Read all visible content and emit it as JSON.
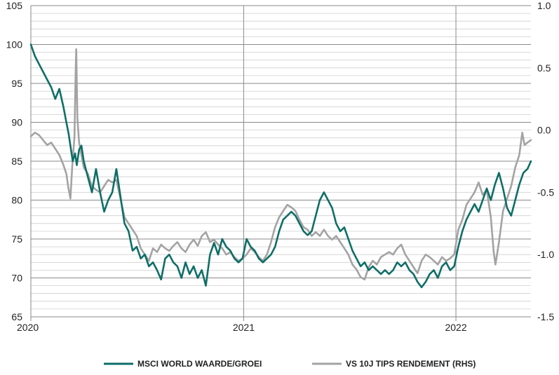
{
  "chart_data": {
    "type": "line",
    "x_axis": {
      "kind": "date",
      "range": [
        "2020-01-01",
        "2022-05-10"
      ],
      "tick_labels": [
        "2020",
        "2021",
        "2022"
      ],
      "tick_dates": [
        "2020-01-01",
        "2021-01-01",
        "2022-01-01"
      ],
      "vertical_gridlines": true
    },
    "y_left": {
      "range": [
        65,
        105
      ],
      "tick_labels": [
        "105",
        "100",
        "95",
        "90",
        "85",
        "80",
        "75",
        "70",
        "65"
      ],
      "ticks": [
        105,
        100,
        95,
        90,
        85,
        80,
        75,
        70,
        65
      ],
      "minor_grid_step": 1
    },
    "y_right": {
      "range": [
        -1.5,
        1.0
      ],
      "tick_labels": [
        "1.0",
        "0.5",
        "0.0",
        "-0.5",
        "-1.0",
        "-1.5"
      ],
      "ticks": [
        1.0,
        0.5,
        0.0,
        -0.5,
        -1.0,
        -1.5
      ]
    },
    "grid": true,
    "legend": {
      "placement": "bottom-center"
    },
    "series": [
      {
        "name": "MSCI WORLD WAARDE/GROEI",
        "axis": "left",
        "color": "#0e6e67",
        "points": [
          [
            "2020-01-01",
            100.0
          ],
          [
            "2020-01-08",
            98.5
          ],
          [
            "2020-01-15",
            97.5
          ],
          [
            "2020-01-22",
            96.5
          ],
          [
            "2020-01-29",
            95.5
          ],
          [
            "2020-02-05",
            94.5
          ],
          [
            "2020-02-12",
            93.0
          ],
          [
            "2020-02-19",
            94.3
          ],
          [
            "2020-02-26",
            92.0
          ],
          [
            "2020-03-02",
            90.0
          ],
          [
            "2020-03-06",
            88.5
          ],
          [
            "2020-03-10",
            86.5
          ],
          [
            "2020-03-13",
            85.0
          ],
          [
            "2020-03-17",
            86.0
          ],
          [
            "2020-03-20",
            84.5
          ],
          [
            "2020-03-24",
            86.5
          ],
          [
            "2020-03-28",
            87.0
          ],
          [
            "2020-04-01",
            85.0
          ],
          [
            "2020-04-08",
            83.0
          ],
          [
            "2020-04-15",
            81.0
          ],
          [
            "2020-04-22",
            84.0
          ],
          [
            "2020-04-29",
            81.0
          ],
          [
            "2020-05-06",
            78.5
          ],
          [
            "2020-05-13",
            80.0
          ],
          [
            "2020-05-20",
            81.0
          ],
          [
            "2020-05-27",
            84.0
          ],
          [
            "2020-06-03",
            80.5
          ],
          [
            "2020-06-10",
            77.0
          ],
          [
            "2020-06-17",
            76.0
          ],
          [
            "2020-06-24",
            73.5
          ],
          [
            "2020-07-01",
            74.0
          ],
          [
            "2020-07-08",
            72.5
          ],
          [
            "2020-07-15",
            73.0
          ],
          [
            "2020-07-22",
            71.5
          ],
          [
            "2020-07-29",
            72.0
          ],
          [
            "2020-08-05",
            71.0
          ],
          [
            "2020-08-12",
            69.8
          ],
          [
            "2020-08-19",
            72.5
          ],
          [
            "2020-08-26",
            73.0
          ],
          [
            "2020-09-02",
            72.0
          ],
          [
            "2020-09-09",
            71.5
          ],
          [
            "2020-09-16",
            70.0
          ],
          [
            "2020-09-23",
            72.0
          ],
          [
            "2020-09-30",
            70.5
          ],
          [
            "2020-10-07",
            71.5
          ],
          [
            "2020-10-14",
            70.0
          ],
          [
            "2020-10-21",
            71.0
          ],
          [
            "2020-10-28",
            69.0
          ],
          [
            "2020-11-04",
            73.0
          ],
          [
            "2020-11-11",
            74.5
          ],
          [
            "2020-11-18",
            73.0
          ],
          [
            "2020-11-25",
            75.0
          ],
          [
            "2020-12-02",
            74.0
          ],
          [
            "2020-12-09",
            73.5
          ],
          [
            "2020-12-16",
            72.5
          ],
          [
            "2020-12-23",
            72.0
          ],
          [
            "2020-12-30",
            72.5
          ],
          [
            "2021-01-06",
            75.0
          ],
          [
            "2021-01-13",
            74.0
          ],
          [
            "2021-01-20",
            73.5
          ],
          [
            "2021-01-27",
            72.5
          ],
          [
            "2021-02-03",
            72.0
          ],
          [
            "2021-02-10",
            72.5
          ],
          [
            "2021-02-17",
            73.0
          ],
          [
            "2021-02-24",
            74.0
          ],
          [
            "2021-03-03",
            76.0
          ],
          [
            "2021-03-10",
            77.5
          ],
          [
            "2021-03-17",
            78.0
          ],
          [
            "2021-03-24",
            78.5
          ],
          [
            "2021-03-31",
            78.0
          ],
          [
            "2021-04-07",
            77.0
          ],
          [
            "2021-04-14",
            76.0
          ],
          [
            "2021-04-21",
            75.5
          ],
          [
            "2021-04-28",
            76.0
          ],
          [
            "2021-05-05",
            78.0
          ],
          [
            "2021-05-12",
            80.0
          ],
          [
            "2021-05-19",
            81.0
          ],
          [
            "2021-05-26",
            80.0
          ],
          [
            "2021-06-02",
            79.0
          ],
          [
            "2021-06-09",
            77.0
          ],
          [
            "2021-06-16",
            76.0
          ],
          [
            "2021-06-23",
            76.5
          ],
          [
            "2021-06-30",
            75.0
          ],
          [
            "2021-07-07",
            73.5
          ],
          [
            "2021-07-14",
            72.5
          ],
          [
            "2021-07-21",
            71.5
          ],
          [
            "2021-07-28",
            72.0
          ],
          [
            "2021-08-04",
            71.0
          ],
          [
            "2021-08-11",
            71.5
          ],
          [
            "2021-08-18",
            71.0
          ],
          [
            "2021-08-25",
            70.5
          ],
          [
            "2021-09-01",
            71.0
          ],
          [
            "2021-09-08",
            70.5
          ],
          [
            "2021-09-15",
            71.0
          ],
          [
            "2021-09-22",
            72.0
          ],
          [
            "2021-09-29",
            71.5
          ],
          [
            "2021-10-06",
            72.0
          ],
          [
            "2021-10-13",
            71.0
          ],
          [
            "2021-10-20",
            70.5
          ],
          [
            "2021-10-27",
            69.5
          ],
          [
            "2021-11-03",
            68.8
          ],
          [
            "2021-11-10",
            69.5
          ],
          [
            "2021-11-17",
            70.5
          ],
          [
            "2021-11-24",
            71.0
          ],
          [
            "2021-12-01",
            70.0
          ],
          [
            "2021-12-08",
            71.5
          ],
          [
            "2021-12-15",
            72.0
          ],
          [
            "2021-12-22",
            71.0
          ],
          [
            "2021-12-29",
            71.5
          ],
          [
            "2022-01-05",
            74.0
          ],
          [
            "2022-01-12",
            76.0
          ],
          [
            "2022-01-19",
            77.5
          ],
          [
            "2022-01-26",
            78.5
          ],
          [
            "2022-02-02",
            79.5
          ],
          [
            "2022-02-09",
            78.5
          ],
          [
            "2022-02-16",
            80.0
          ],
          [
            "2022-02-23",
            81.5
          ],
          [
            "2022-03-02",
            80.0
          ],
          [
            "2022-03-09",
            82.0
          ],
          [
            "2022-03-16",
            83.5
          ],
          [
            "2022-03-23",
            81.5
          ],
          [
            "2022-03-30",
            79.0
          ],
          [
            "2022-04-06",
            78.0
          ],
          [
            "2022-04-13",
            80.0
          ],
          [
            "2022-04-20",
            82.0
          ],
          [
            "2022-04-27",
            83.5
          ],
          [
            "2022-05-04",
            84.0
          ],
          [
            "2022-05-10",
            85.0
          ]
        ]
      },
      {
        "name": "VS 10J TIPS RENDEMENT (RHS)",
        "axis": "right",
        "color": "#a3a3a3",
        "points": [
          [
            "2020-01-01",
            -0.05
          ],
          [
            "2020-01-08",
            -0.02
          ],
          [
            "2020-01-15",
            -0.04
          ],
          [
            "2020-01-22",
            -0.08
          ],
          [
            "2020-01-29",
            -0.12
          ],
          [
            "2020-02-05",
            -0.1
          ],
          [
            "2020-02-12",
            -0.15
          ],
          [
            "2020-02-19",
            -0.2
          ],
          [
            "2020-02-26",
            -0.28
          ],
          [
            "2020-03-02",
            -0.35
          ],
          [
            "2020-03-05",
            -0.45
          ],
          [
            "2020-03-09",
            -0.55
          ],
          [
            "2020-03-12",
            -0.3
          ],
          [
            "2020-03-16",
            -0.05
          ],
          [
            "2020-03-18",
            0.45
          ],
          [
            "2020-03-19",
            0.65
          ],
          [
            "2020-03-21",
            0.1
          ],
          [
            "2020-03-24",
            -0.1
          ],
          [
            "2020-03-28",
            -0.2
          ],
          [
            "2020-04-01",
            -0.3
          ],
          [
            "2020-04-08",
            -0.35
          ],
          [
            "2020-04-15",
            -0.45
          ],
          [
            "2020-04-22",
            -0.48
          ],
          [
            "2020-04-29",
            -0.5
          ],
          [
            "2020-05-06",
            -0.45
          ],
          [
            "2020-05-13",
            -0.4
          ],
          [
            "2020-05-20",
            -0.42
          ],
          [
            "2020-05-27",
            -0.4
          ],
          [
            "2020-06-03",
            -0.55
          ],
          [
            "2020-06-10",
            -0.7
          ],
          [
            "2020-06-17",
            -0.75
          ],
          [
            "2020-06-24",
            -0.8
          ],
          [
            "2020-07-01",
            -0.85
          ],
          [
            "2020-07-08",
            -0.95
          ],
          [
            "2020-07-15",
            -1.0
          ],
          [
            "2020-07-22",
            -1.05
          ],
          [
            "2020-07-29",
            -0.95
          ],
          [
            "2020-08-05",
            -0.98
          ],
          [
            "2020-08-12",
            -0.92
          ],
          [
            "2020-08-19",
            -0.95
          ],
          [
            "2020-08-26",
            -0.97
          ],
          [
            "2020-09-02",
            -0.93
          ],
          [
            "2020-09-09",
            -0.9
          ],
          [
            "2020-09-16",
            -0.95
          ],
          [
            "2020-09-23",
            -0.98
          ],
          [
            "2020-09-30",
            -0.92
          ],
          [
            "2020-10-07",
            -0.88
          ],
          [
            "2020-10-14",
            -0.93
          ],
          [
            "2020-10-21",
            -0.85
          ],
          [
            "2020-10-28",
            -0.82
          ],
          [
            "2020-11-04",
            -0.9
          ],
          [
            "2020-11-11",
            -0.88
          ],
          [
            "2020-11-18",
            -0.92
          ],
          [
            "2020-11-25",
            -0.95
          ],
          [
            "2020-12-02",
            -1.0
          ],
          [
            "2020-12-09",
            -0.98
          ],
          [
            "2020-12-16",
            -1.02
          ],
          [
            "2020-12-23",
            -1.05
          ],
          [
            "2020-12-30",
            -1.03
          ],
          [
            "2021-01-06",
            -1.0
          ],
          [
            "2021-01-13",
            -0.95
          ],
          [
            "2021-01-20",
            -0.98
          ],
          [
            "2021-01-27",
            -1.02
          ],
          [
            "2021-02-03",
            -1.05
          ],
          [
            "2021-02-10",
            -1.0
          ],
          [
            "2021-02-17",
            -0.9
          ],
          [
            "2021-02-24",
            -0.78
          ],
          [
            "2021-03-03",
            -0.7
          ],
          [
            "2021-03-10",
            -0.65
          ],
          [
            "2021-03-17",
            -0.6
          ],
          [
            "2021-03-24",
            -0.62
          ],
          [
            "2021-03-31",
            -0.65
          ],
          [
            "2021-04-07",
            -0.72
          ],
          [
            "2021-04-14",
            -0.78
          ],
          [
            "2021-04-21",
            -0.8
          ],
          [
            "2021-04-28",
            -0.85
          ],
          [
            "2021-05-05",
            -0.82
          ],
          [
            "2021-05-12",
            -0.85
          ],
          [
            "2021-05-19",
            -0.8
          ],
          [
            "2021-05-26",
            -0.85
          ],
          [
            "2021-06-02",
            -0.88
          ],
          [
            "2021-06-09",
            -0.85
          ],
          [
            "2021-06-16",
            -0.9
          ],
          [
            "2021-06-23",
            -0.95
          ],
          [
            "2021-06-30",
            -1.0
          ],
          [
            "2021-07-07",
            -1.08
          ],
          [
            "2021-07-14",
            -1.12
          ],
          [
            "2021-07-21",
            -1.18
          ],
          [
            "2021-07-28",
            -1.2
          ],
          [
            "2021-08-04",
            -1.1
          ],
          [
            "2021-08-11",
            -1.05
          ],
          [
            "2021-08-18",
            -1.08
          ],
          [
            "2021-08-25",
            -1.02
          ],
          [
            "2021-09-01",
            -1.0
          ],
          [
            "2021-09-08",
            -0.98
          ],
          [
            "2021-09-15",
            -1.0
          ],
          [
            "2021-09-22",
            -0.95
          ],
          [
            "2021-09-29",
            -0.92
          ],
          [
            "2021-10-06",
            -1.0
          ],
          [
            "2021-10-13",
            -1.05
          ],
          [
            "2021-10-20",
            -1.1
          ],
          [
            "2021-10-27",
            -1.15
          ],
          [
            "2021-11-03",
            -1.05
          ],
          [
            "2021-11-10",
            -1.0
          ],
          [
            "2021-11-17",
            -1.02
          ],
          [
            "2021-11-24",
            -1.05
          ],
          [
            "2021-12-01",
            -1.08
          ],
          [
            "2021-12-08",
            -1.02
          ],
          [
            "2021-12-15",
            -1.05
          ],
          [
            "2021-12-22",
            -1.03
          ],
          [
            "2021-12-29",
            -1.0
          ],
          [
            "2022-01-05",
            -0.8
          ],
          [
            "2022-01-12",
            -0.72
          ],
          [
            "2022-01-19",
            -0.6
          ],
          [
            "2022-01-26",
            -0.55
          ],
          [
            "2022-02-02",
            -0.5
          ],
          [
            "2022-02-09",
            -0.42
          ],
          [
            "2022-02-16",
            -0.52
          ],
          [
            "2022-02-23",
            -0.48
          ],
          [
            "2022-03-02",
            -0.7
          ],
          [
            "2022-03-07",
            -0.98
          ],
          [
            "2022-03-10",
            -1.08
          ],
          [
            "2022-03-16",
            -0.9
          ],
          [
            "2022-03-23",
            -0.65
          ],
          [
            "2022-03-30",
            -0.55
          ],
          [
            "2022-04-06",
            -0.45
          ],
          [
            "2022-04-13",
            -0.3
          ],
          [
            "2022-04-20",
            -0.2
          ],
          [
            "2022-04-25",
            -0.02
          ],
          [
            "2022-04-29",
            -0.12
          ],
          [
            "2022-05-04",
            -0.1
          ],
          [
            "2022-05-10",
            -0.08
          ]
        ]
      }
    ]
  }
}
